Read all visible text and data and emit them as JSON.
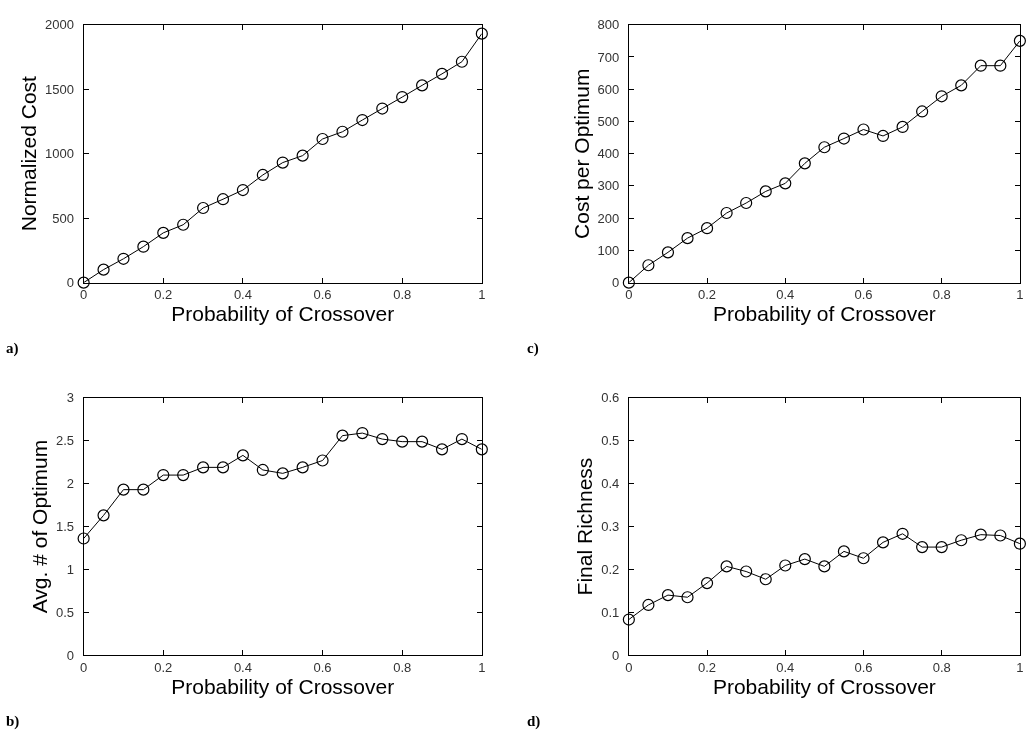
{
  "chart_data": [
    {
      "type": "line",
      "xlabel": "Probability of Crossover",
      "ylabel": "Normalized Cost",
      "annotations": [
        "a)"
      ],
      "marker": "circle",
      "line_style": "solid",
      "x": [
        0,
        0.05,
        0.1,
        0.15,
        0.2,
        0.25,
        0.3,
        0.35,
        0.4,
        0.45,
        0.5,
        0.55,
        0.6,
        0.65,
        0.7,
        0.75,
        0.8,
        0.85,
        0.9,
        0.95,
        1
      ],
      "xlim": [
        0,
        1
      ],
      "xticks": [
        0,
        0.2,
        0.4,
        0.6,
        0.8,
        1
      ],
      "ylim": [
        0,
        2000
      ],
      "yticks": [
        0,
        500,
        1000,
        1500,
        2000
      ],
      "series": [
        {
          "color": "#000000",
          "values": [
            0,
            101,
            185,
            279,
            386,
            449,
            579,
            647,
            718,
            835,
            931,
            985,
            1114,
            1170,
            1261,
            1350,
            1439,
            1530,
            1619,
            1713,
            1931
          ]
        }
      ]
    },
    {
      "type": "line",
      "xlabel": "Probability of Crossover",
      "ylabel": "Cost per Optimum",
      "annotations": [
        "c)"
      ],
      "marker": "circle",
      "line_style": "solid",
      "x": [
        0,
        0.05,
        0.1,
        0.15,
        0.2,
        0.25,
        0.3,
        0.35,
        0.4,
        0.45,
        0.5,
        0.55,
        0.6,
        0.65,
        0.7,
        0.75,
        0.8,
        0.85,
        0.9,
        0.95,
        1
      ],
      "xlim": [
        0,
        1
      ],
      "xticks": [
        0,
        0.2,
        0.4,
        0.6,
        0.8,
        1
      ],
      "ylim": [
        0,
        800
      ],
      "yticks": [
        0,
        100,
        200,
        300,
        400,
        500,
        600,
        700,
        800
      ],
      "series": [
        {
          "color": "#000000",
          "values": [
            0,
            54,
            94,
            138,
            169,
            216,
            247,
            283,
            308,
            370,
            420,
            447,
            475,
            455,
            483,
            531,
            578,
            612,
            673,
            673,
            750
          ]
        }
      ]
    },
    {
      "type": "line",
      "xlabel": "Probability of Crossover",
      "ylabel": "Avg. # of Optimum",
      "annotations": [
        "b)"
      ],
      "marker": "circle",
      "line_style": "solid",
      "x": [
        0,
        0.05,
        0.1,
        0.15,
        0.2,
        0.25,
        0.3,
        0.35,
        0.4,
        0.45,
        0.5,
        0.55,
        0.6,
        0.65,
        0.7,
        0.75,
        0.8,
        0.85,
        0.9,
        0.95,
        1
      ],
      "xlim": [
        0,
        1
      ],
      "xticks": [
        0,
        0.2,
        0.4,
        0.6,
        0.8,
        1
      ],
      "ylim": [
        0,
        3
      ],
      "yticks": [
        0,
        0.5,
        1,
        1.5,
        2,
        2.5,
        3
      ],
      "series": [
        {
          "color": "#000000",
          "values": [
            1.36,
            1.63,
            1.93,
            1.93,
            2.1,
            2.1,
            2.19,
            2.19,
            2.33,
            2.16,
            2.12,
            2.19,
            2.27,
            2.56,
            2.59,
            2.52,
            2.49,
            2.49,
            2.4,
            2.52,
            2.4
          ]
        }
      ]
    },
    {
      "type": "line",
      "xlabel": "Probability of Crossover",
      "ylabel": "Final Richness",
      "annotations": [
        "d)"
      ],
      "marker": "circle",
      "line_style": "solid",
      "x": [
        0,
        0.05,
        0.1,
        0.15,
        0.2,
        0.25,
        0.3,
        0.35,
        0.4,
        0.45,
        0.5,
        0.55,
        0.6,
        0.65,
        0.7,
        0.75,
        0.8,
        0.85,
        0.9,
        0.95,
        1
      ],
      "xlim": [
        0,
        1
      ],
      "xticks": [
        0,
        0.2,
        0.4,
        0.6,
        0.8,
        1
      ],
      "ylim": [
        0,
        0.6
      ],
      "yticks": [
        0,
        0.1,
        0.2,
        0.3,
        0.4,
        0.5,
        0.6
      ],
      "series": [
        {
          "color": "#000000",
          "values": [
            0.083,
            0.117,
            0.14,
            0.135,
            0.168,
            0.207,
            0.195,
            0.177,
            0.209,
            0.224,
            0.207,
            0.242,
            0.226,
            0.263,
            0.283,
            0.252,
            0.252,
            0.268,
            0.281,
            0.279,
            0.26
          ]
        }
      ]
    }
  ]
}
